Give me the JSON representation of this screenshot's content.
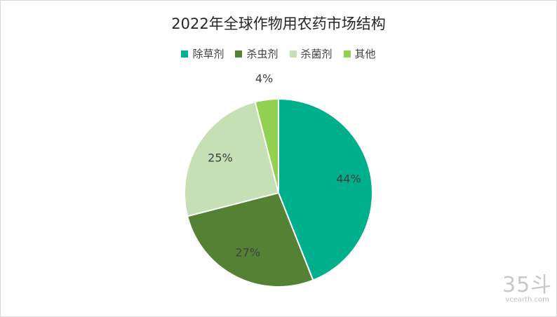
{
  "chart_data": {
    "type": "pie",
    "title": "2022年全球作物用农药市场结构",
    "legend_position": "top",
    "categories": [
      "除草剂",
      "杀虫剂",
      "杀菌剂",
      "其他"
    ],
    "values": [
      44,
      27,
      25,
      4
    ],
    "labels": [
      "44%",
      "27%",
      "25%",
      "4%"
    ],
    "colors": [
      "#00b08c",
      "#548235",
      "#c5e0b4",
      "#92d050"
    ]
  },
  "watermark": {
    "logo": "35斗",
    "url": "vcearth.com"
  }
}
